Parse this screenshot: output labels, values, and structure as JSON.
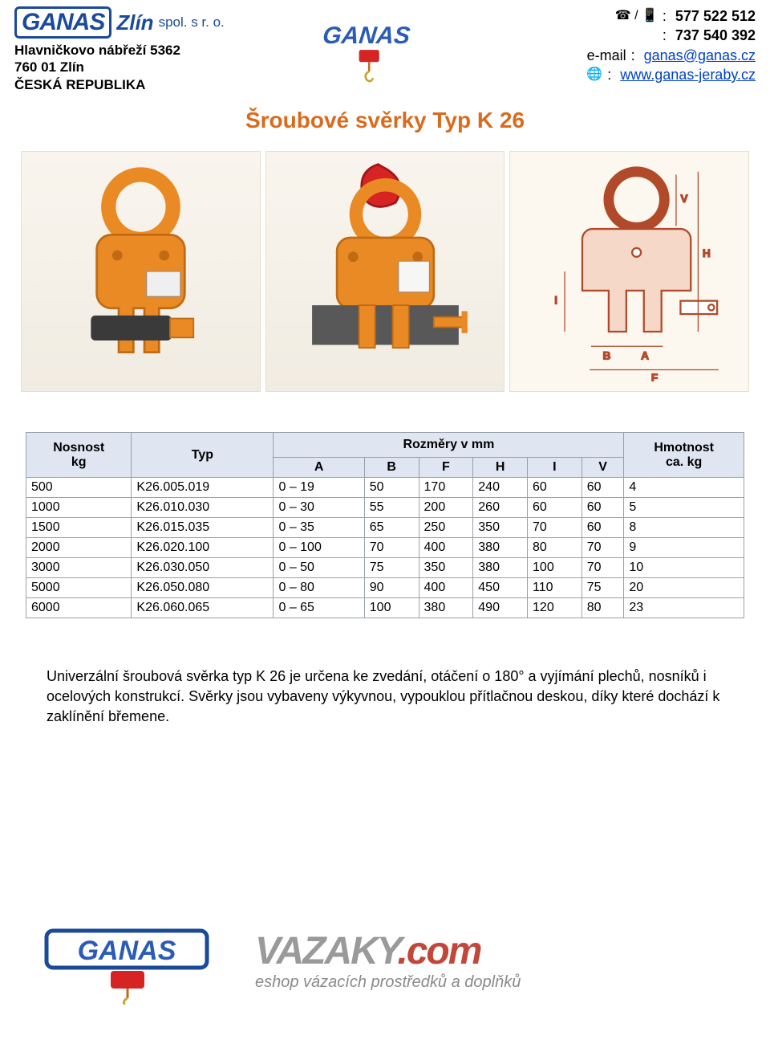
{
  "header": {
    "brand_main": "GANAS",
    "brand_city": "Zlín",
    "brand_spol": "spol. s r. o.",
    "address_line1": "Hlavničkovo nábřeží 5362",
    "address_line2": "760 01  Zlín",
    "address_country": "ČESKÁ REPUBLIKA",
    "contacts": {
      "phone_icon": "☎ / 📱",
      "phone1": "577 522 512",
      "phone2": "737 540 392",
      "email_label": "e-mail",
      "email": "ganas@ganas.cz",
      "web_icon": "🌐",
      "web": "www.ganas-jeraby.cz"
    },
    "center_logo_text": "GANAS"
  },
  "title": {
    "text": "Šroubové svěrky Typ K 26",
    "color": "#d96b1d"
  },
  "clamp_colors": {
    "body": "#e98a24",
    "body_dark": "#c06b14",
    "hook": "#d62424",
    "diagram_line": "#b04a2a",
    "diagram_light": "#f5d8c8",
    "steel": "#585858",
    "label_bg": "#efefef"
  },
  "table": {
    "header_bg": "#dfe5f1",
    "border_color": "#9aa0aa",
    "col_nosnost_l1": "Nosnost",
    "col_nosnost_l2": "kg",
    "col_typ": "Typ",
    "col_rozmery": "Rozměry v mm",
    "col_A": "A",
    "col_B": "B",
    "col_F": "F",
    "col_H": "H",
    "col_I": "I",
    "col_V": "V",
    "col_hmot_l1": "Hmotnost",
    "col_hmot_l2": "ca. kg",
    "rows": [
      {
        "n": "500",
        "t": "K26.005.019",
        "a": "0 – 19",
        "b": "50",
        "f": "170",
        "h": "240",
        "i": "60",
        "v": "60",
        "m": "4"
      },
      {
        "n": "1000",
        "t": "K26.010.030",
        "a": "0 – 30",
        "b": "55",
        "f": "200",
        "h": "260",
        "i": "60",
        "v": "60",
        "m": "5"
      },
      {
        "n": "1500",
        "t": "K26.015.035",
        "a": "0 – 35",
        "b": "65",
        "f": "250",
        "h": "350",
        "i": "70",
        "v": "60",
        "m": "8"
      },
      {
        "n": "2000",
        "t": "K26.020.100",
        "a": "0 – 100",
        "b": "70",
        "f": "400",
        "h": "380",
        "i": "80",
        "v": "70",
        "m": "9"
      },
      {
        "n": "3000",
        "t": "K26.030.050",
        "a": "0 – 50",
        "b": "75",
        "f": "350",
        "h": "380",
        "i": "100",
        "v": "70",
        "m": "10"
      },
      {
        "n": "5000",
        "t": "K26.050.080",
        "a": "0 – 80",
        "b": "90",
        "f": "400",
        "h": "450",
        "i": "110",
        "v": "75",
        "m": "20"
      },
      {
        "n": "6000",
        "t": "K26.060.065",
        "a": "0 – 65",
        "b": "100",
        "f": "380",
        "h": "490",
        "i": "120",
        "v": "80",
        "m": "23"
      }
    ]
  },
  "description": "Univerzální šroubová svěrka typ K 26 je určena ke zvedání, otáčení o 180° a vyjímání plechů, nosníků i ocelových konstrukcí. Svěrky jsou vybaveny výkyvnou, vypouklou přítlačnou deskou, díky které dochází k zaklínění břemene.",
  "footer": {
    "logo_text": "GANAS",
    "brand_main": "VAZAKY",
    "brand_domain": ".com",
    "brand_color_main": "#9a9a9a",
    "brand_color_domain": "#c2473a",
    "subtitle": "eshop vázacích prostředků a doplňků"
  }
}
